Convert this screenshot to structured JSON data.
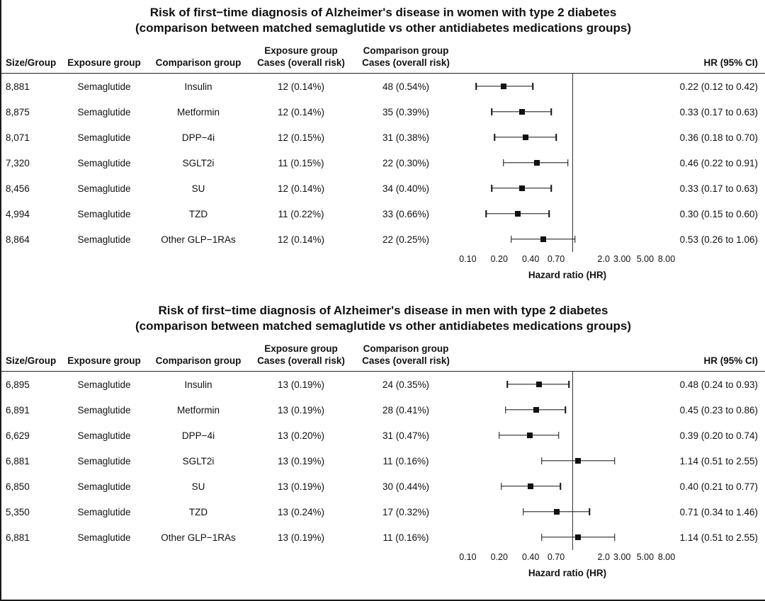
{
  "chart_data": [
    {
      "type": "forest",
      "title": "Risk of first−time diagnosis of Alzheimer's disease in women with type 2 diabetes",
      "subtitle": "(comparison between matched semaglutide vs other antidiabetes medications groups)",
      "columns": {
        "size": "Size/Group",
        "exposure": "Exposure group",
        "comparison": "Comparison group",
        "exposure_cases_line1": "Exposure group",
        "exposure_cases_line2": "Cases (overall risk)",
        "comparison_cases_line1": "Comparison group",
        "comparison_cases_line2": "Cases (overall risk)",
        "hr": "HR (95% CI)"
      },
      "xlabel": "Hazard ratio (HR)",
      "x_scale": "log",
      "x_range": [
        0.085,
        9.5
      ],
      "ref_line": 1,
      "x_ticks": [
        0.1,
        0.2,
        0.4,
        0.7,
        2.0,
        3.0,
        5.0,
        8.0
      ],
      "x_tick_labels": [
        "0.10",
        "0.20",
        "0.40",
        "0.70",
        "2.0",
        "3.00",
        "5.00",
        "8.00"
      ],
      "rows": [
        {
          "size": "8,881",
          "exposure": "Semaglutide",
          "comparison": "Insulin",
          "exposure_cases": "12 (0.14%)",
          "comparison_cases": "48 (0.54%)",
          "hr": 0.22,
          "lo": 0.12,
          "hi": 0.42,
          "hr_text": "0.22 (0.12 to 0.42)"
        },
        {
          "size": "8,875",
          "exposure": "Semaglutide",
          "comparison": "Metformin",
          "exposure_cases": "12 (0.14%)",
          "comparison_cases": "35 (0.39%)",
          "hr": 0.33,
          "lo": 0.17,
          "hi": 0.63,
          "hr_text": "0.33 (0.17 to 0.63)"
        },
        {
          "size": "8,071",
          "exposure": "Semaglutide",
          "comparison": "DPP−4i",
          "exposure_cases": "12 (0.15%)",
          "comparison_cases": "31 (0.38%)",
          "hr": 0.36,
          "lo": 0.18,
          "hi": 0.7,
          "hr_text": "0.36 (0.18 to 0.70)"
        },
        {
          "size": "7,320",
          "exposure": "Semaglutide",
          "comparison": "SGLT2i",
          "exposure_cases": "11 (0.15%)",
          "comparison_cases": "22 (0.30%)",
          "hr": 0.46,
          "lo": 0.22,
          "hi": 0.91,
          "hr_text": "0.46 (0.22 to 0.91)"
        },
        {
          "size": "8,456",
          "exposure": "Semaglutide",
          "comparison": "SU",
          "exposure_cases": "12 (0.14%)",
          "comparison_cases": "34 (0.40%)",
          "hr": 0.33,
          "lo": 0.17,
          "hi": 0.63,
          "hr_text": "0.33 (0.17 to 0.63)"
        },
        {
          "size": "4,994",
          "exposure": "Semaglutide",
          "comparison": "TZD",
          "exposure_cases": "11 (0.22%)",
          "comparison_cases": "33 (0.66%)",
          "hr": 0.3,
          "lo": 0.15,
          "hi": 0.6,
          "hr_text": "0.30 (0.15 to 0.60)"
        },
        {
          "size": "8,864",
          "exposure": "Semaglutide",
          "comparison": "Other GLP−1RAs",
          "exposure_cases": "12 (0.14%)",
          "comparison_cases": "22 (0.25%)",
          "hr": 0.53,
          "lo": 0.26,
          "hi": 1.06,
          "hr_text": "0.53 (0.26 to 1.06)"
        }
      ]
    },
    {
      "type": "forest",
      "title": "Risk of first−time diagnosis of Alzheimer's disease in men with type 2 diabetes",
      "subtitle": "(comparison between matched semaglutide vs other antidiabetes medications groups)",
      "columns": {
        "size": "Size/Group",
        "exposure": "Exposure group",
        "comparison": "Comparison group",
        "exposure_cases_line1": "Exposure group",
        "exposure_cases_line2": "Cases (overall risk)",
        "comparison_cases_line1": "Comparison group",
        "comparison_cases_line2": "Cases (overall risk)",
        "hr": "HR (95% CI)"
      },
      "xlabel": "Hazard ratio (HR)",
      "x_scale": "log",
      "x_range": [
        0.085,
        9.5
      ],
      "ref_line": 1,
      "x_ticks": [
        0.1,
        0.2,
        0.4,
        0.7,
        2.0,
        3.0,
        5.0,
        8.0
      ],
      "x_tick_labels": [
        "0.10",
        "0.20",
        "0.40",
        "0.70",
        "2.0",
        "3.00",
        "5.00",
        "8.00"
      ],
      "rows": [
        {
          "size": "6,895",
          "exposure": "Semaglutide",
          "comparison": "Insulin",
          "exposure_cases": "13 (0.19%)",
          "comparison_cases": "24 (0.35%)",
          "hr": 0.48,
          "lo": 0.24,
          "hi": 0.93,
          "hr_text": "0.48 (0.24 to 0.93)"
        },
        {
          "size": "6,891",
          "exposure": "Semaglutide",
          "comparison": "Metformin",
          "exposure_cases": "13 (0.19%)",
          "comparison_cases": "28 (0.41%)",
          "hr": 0.45,
          "lo": 0.23,
          "hi": 0.86,
          "hr_text": "0.45 (0.23 to 0.86)"
        },
        {
          "size": "6,629",
          "exposure": "Semaglutide",
          "comparison": "DPP−4i",
          "exposure_cases": "13 (0.20%)",
          "comparison_cases": "31 (0.47%)",
          "hr": 0.39,
          "lo": 0.2,
          "hi": 0.74,
          "hr_text": "0.39 (0.20 to 0.74)"
        },
        {
          "size": "6,881",
          "exposure": "Semaglutide",
          "comparison": "SGLT2i",
          "exposure_cases": "13 (0.19%)",
          "comparison_cases": "11 (0.16%)",
          "hr": 1.14,
          "lo": 0.51,
          "hi": 2.55,
          "hr_text": "1.14 (0.51 to 2.55)"
        },
        {
          "size": "6,850",
          "exposure": "Semaglutide",
          "comparison": "SU",
          "exposure_cases": "13 (0.19%)",
          "comparison_cases": "30 (0.44%)",
          "hr": 0.4,
          "lo": 0.21,
          "hi": 0.77,
          "hr_text": "0.40 (0.21 to 0.77)"
        },
        {
          "size": "5,350",
          "exposure": "Semaglutide",
          "comparison": "TZD",
          "exposure_cases": "13 (0.24%)",
          "comparison_cases": "17 (0.32%)",
          "hr": 0.71,
          "lo": 0.34,
          "hi": 1.46,
          "hr_text": "0.71 (0.34 to 1.46)"
        },
        {
          "size": "6,881",
          "exposure": "Semaglutide",
          "comparison": "Other GLP−1RAs",
          "exposure_cases": "13 (0.19%)",
          "comparison_cases": "11 (0.16%)",
          "hr": 1.14,
          "lo": 0.51,
          "hi": 2.55,
          "hr_text": "1.14 (0.51 to 2.55)"
        }
      ]
    }
  ]
}
